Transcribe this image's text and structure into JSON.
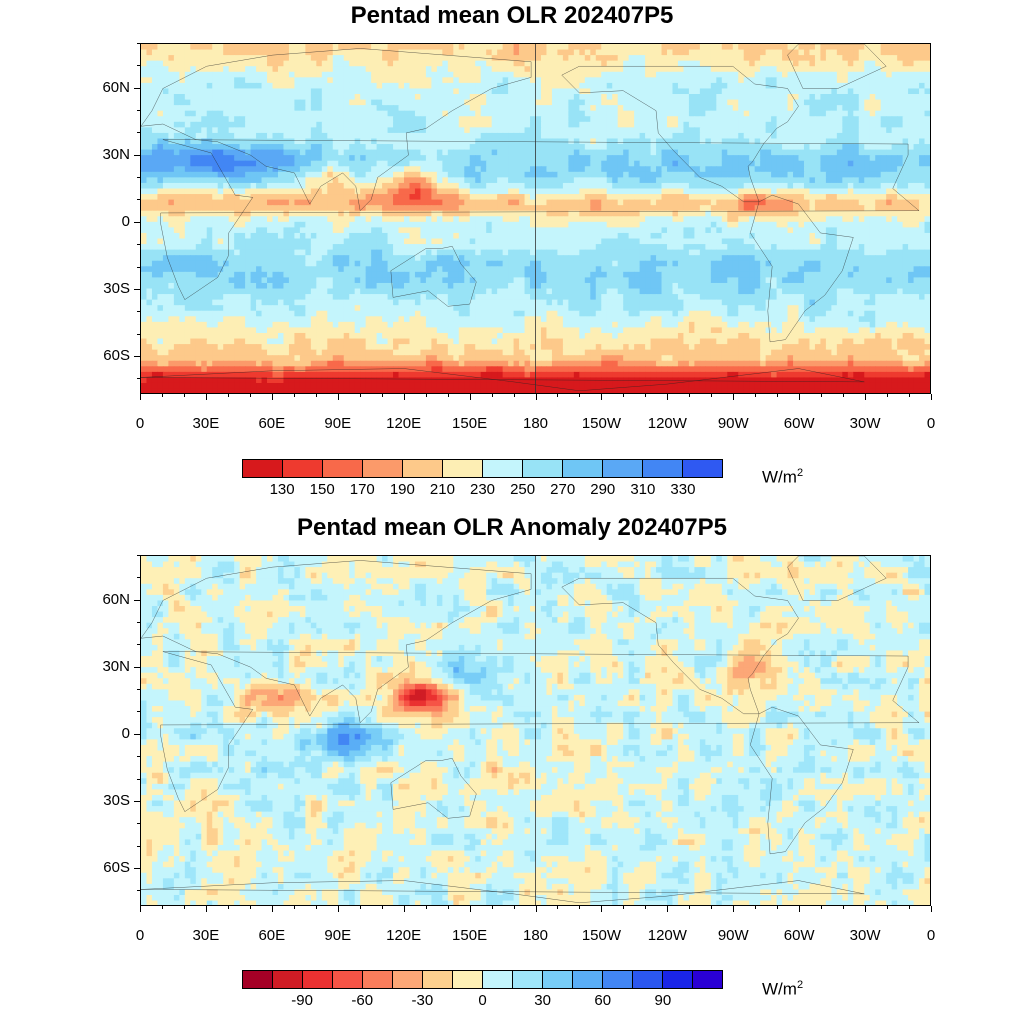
{
  "panels": [
    {
      "title": "Pentad mean OLR 202407P5",
      "lat_labels": [
        "60N",
        "30N",
        "0",
        "30S",
        "60S"
      ],
      "lon_labels": [
        "0",
        "30E",
        "60E",
        "90E",
        "120E",
        "150E",
        "180",
        "150W",
        "120W",
        "90W",
        "60W",
        "30W",
        "0"
      ],
      "colorbar": {
        "colors": [
          "#d7191c",
          "#ee3a2f",
          "#f8694a",
          "#fb9a6a",
          "#fdc98a",
          "#fdeeb4",
          "#c4f5fc",
          "#98e3f6",
          "#6fc6f5",
          "#5aa8f5",
          "#4286f4",
          "#2f59f2"
        ],
        "labels": [
          "130",
          "150",
          "170",
          "190",
          "210",
          "230",
          "250",
          "270",
          "290",
          "310",
          "330"
        ]
      },
      "unit": "W/m",
      "unit_sup": "2"
    },
    {
      "title": "Pentad mean OLR Anomaly 202407P5",
      "lat_labels": [
        "60N",
        "30N",
        "0",
        "30S",
        "60S"
      ],
      "lon_labels": [
        "0",
        "30E",
        "60E",
        "90E",
        "120E",
        "150E",
        "180",
        "150W",
        "120W",
        "90W",
        "60W",
        "30W",
        "0"
      ],
      "colorbar": {
        "colors": [
          "#a50026",
          "#d01c25",
          "#ea3131",
          "#f65446",
          "#fa7d5c",
          "#fca777",
          "#fdd08f",
          "#fef0b6",
          "#c4f5fc",
          "#9fe6fa",
          "#78cdf7",
          "#5aaef6",
          "#4286f4",
          "#2b57f0",
          "#1a25e8",
          "#2a00d5"
        ],
        "labels": [
          "-90",
          "-60",
          "-30",
          "0",
          "30",
          "60",
          "90"
        ]
      },
      "unit": "W/m",
      "unit_sup": "2"
    }
  ]
}
